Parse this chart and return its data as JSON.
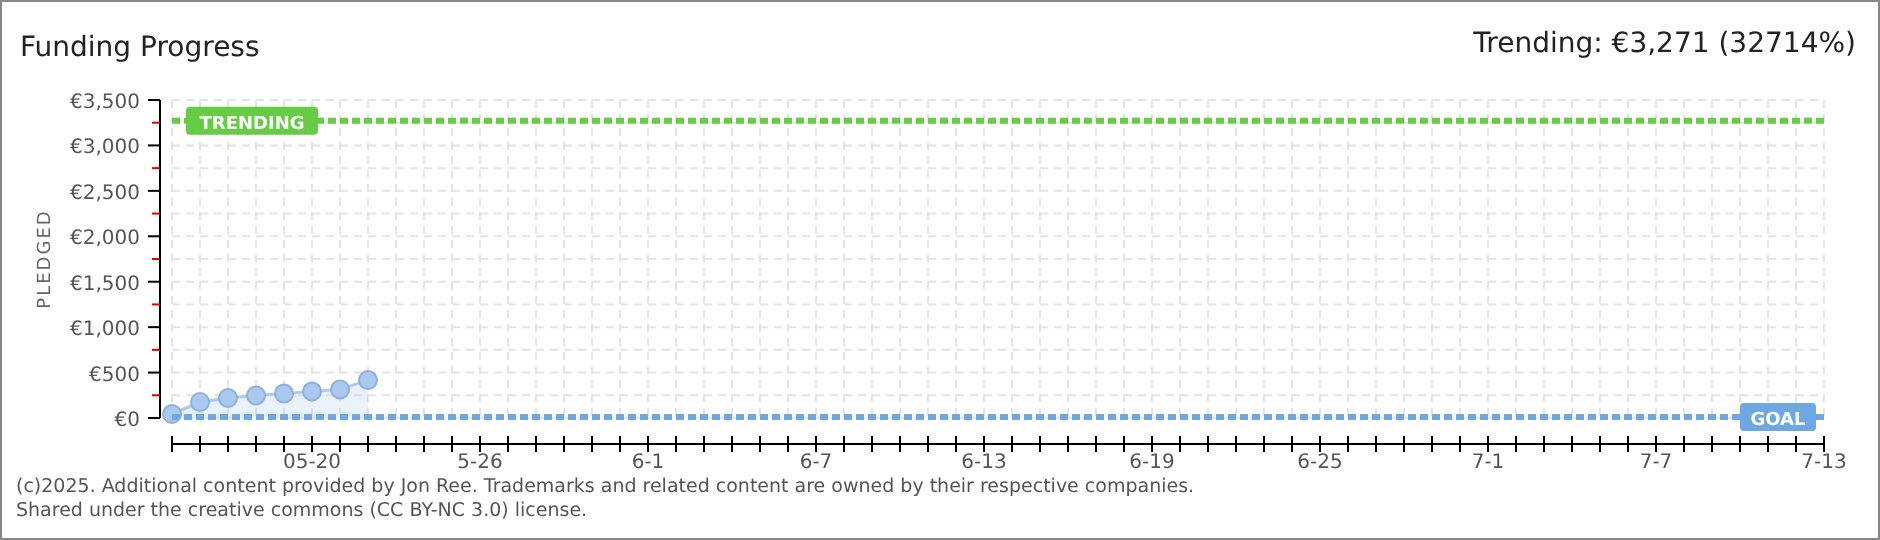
{
  "chart_data": {
    "type": "area",
    "title": "Funding Progress",
    "subtitle": "Trending: €3,271 (32714%)",
    "ylabel": "PLEDGED",
    "x": [
      "2025-05-15",
      "2025-05-16",
      "2025-05-17",
      "2025-05-18",
      "2025-05-19",
      "2025-05-20",
      "2025-05-21",
      "2025-05-22"
    ],
    "series": [
      {
        "color": "#a9c9f0",
        "values": [
          44,
          176,
          220,
          248,
          271,
          293,
          315,
          417
        ]
      }
    ],
    "marker": "circle",
    "grid": true,
    "xlim": [
      "2025-05-15",
      "2025-07-13"
    ],
    "xticks": [
      {
        "value": "2025-05-15",
        "label": null
      },
      {
        "value": "2025-05-16",
        "label": null
      },
      {
        "value": "2025-05-17",
        "label": null
      },
      {
        "value": "2025-05-18",
        "label": null
      },
      {
        "value": "2025-05-19",
        "label": null
      },
      {
        "value": "2025-05-20",
        "label": "05-20"
      },
      {
        "value": "2025-05-21",
        "label": null
      },
      {
        "value": "2025-05-22",
        "label": null
      },
      {
        "value": "2025-05-23",
        "label": null
      },
      {
        "value": "2025-05-24",
        "label": null
      },
      {
        "value": "2025-05-25",
        "label": null
      },
      {
        "value": "2025-05-26",
        "label": "5-26"
      },
      {
        "value": "2025-05-27",
        "label": null
      },
      {
        "value": "2025-05-28",
        "label": null
      },
      {
        "value": "2025-05-29",
        "label": null
      },
      {
        "value": "2025-05-30",
        "label": null
      },
      {
        "value": "2025-05-31",
        "label": null
      },
      {
        "value": "2025-06-01",
        "label": "6-1"
      },
      {
        "value": "2025-06-02",
        "label": null
      },
      {
        "value": "2025-06-03",
        "label": null
      },
      {
        "value": "2025-06-04",
        "label": null
      },
      {
        "value": "2025-06-05",
        "label": null
      },
      {
        "value": "2025-06-06",
        "label": null
      },
      {
        "value": "2025-06-07",
        "label": "6-7"
      },
      {
        "value": "2025-06-08",
        "label": null
      },
      {
        "value": "2025-06-09",
        "label": null
      },
      {
        "value": "2025-06-10",
        "label": null
      },
      {
        "value": "2025-06-11",
        "label": null
      },
      {
        "value": "2025-06-12",
        "label": null
      },
      {
        "value": "2025-06-13",
        "label": "6-13"
      },
      {
        "value": "2025-06-14",
        "label": null
      },
      {
        "value": "2025-06-15",
        "label": null
      },
      {
        "value": "2025-06-16",
        "label": null
      },
      {
        "value": "2025-06-17",
        "label": null
      },
      {
        "value": "2025-06-18",
        "label": null
      },
      {
        "value": "2025-06-19",
        "label": "6-19"
      },
      {
        "value": "2025-06-20",
        "label": null
      },
      {
        "value": "2025-06-21",
        "label": null
      },
      {
        "value": "2025-06-22",
        "label": null
      },
      {
        "value": "2025-06-23",
        "label": null
      },
      {
        "value": "2025-06-24",
        "label": null
      },
      {
        "value": "2025-06-25",
        "label": "6-25"
      },
      {
        "value": "2025-06-26",
        "label": null
      },
      {
        "value": "2025-06-27",
        "label": null
      },
      {
        "value": "2025-06-28",
        "label": null
      },
      {
        "value": "2025-06-29",
        "label": null
      },
      {
        "value": "2025-06-30",
        "label": null
      },
      {
        "value": "2025-07-01",
        "label": "7-1"
      },
      {
        "value": "2025-07-02",
        "label": null
      },
      {
        "value": "2025-07-03",
        "label": null
      },
      {
        "value": "2025-07-04",
        "label": null
      },
      {
        "value": "2025-07-05",
        "label": null
      },
      {
        "value": "2025-07-06",
        "label": null
      },
      {
        "value": "2025-07-07",
        "label": "7-7"
      },
      {
        "value": "2025-07-08",
        "label": null
      },
      {
        "value": "2025-07-09",
        "label": null
      },
      {
        "value": "2025-07-10",
        "label": null
      },
      {
        "value": "2025-07-11",
        "label": null
      },
      {
        "value": "2025-07-12",
        "label": null
      },
      {
        "value": "2025-07-13",
        "label": "7-13"
      }
    ],
    "ylim": [
      0,
      3500
    ],
    "yticks": [
      {
        "value": 0,
        "label": "€0"
      },
      {
        "value": 250,
        "label": null
      },
      {
        "value": 500,
        "label": "€500"
      },
      {
        "value": 750,
        "label": null
      },
      {
        "value": 1000,
        "label": "€1,000"
      },
      {
        "value": 1250,
        "label": null
      },
      {
        "value": 1500,
        "label": "€1,500"
      },
      {
        "value": 1750,
        "label": null
      },
      {
        "value": 2000,
        "label": "€2,000"
      },
      {
        "value": 2250,
        "label": null
      },
      {
        "value": 2500,
        "label": "€2,500"
      },
      {
        "value": 2750,
        "label": null
      },
      {
        "value": 3000,
        "label": "€3,000"
      },
      {
        "value": 3250,
        "label": null
      },
      {
        "value": 3500,
        "label": "€3,500"
      }
    ],
    "ref_lines": [
      {
        "axis": "y",
        "value": 3271,
        "label": "TRENDING",
        "color": "#66cc44",
        "line_style": "dashed"
      },
      {
        "axis": "y",
        "value": 10,
        "label": "GOAL",
        "color": "#6fa8e0",
        "line_style": "dashed"
      }
    ],
    "annotations": [
      "(c)2025. Additional content provided by Jon Ree. Trademarks and related content are owned by their respective companies.",
      "Shared under the creative commons (CC BY-NC 3.0) license."
    ]
  }
}
